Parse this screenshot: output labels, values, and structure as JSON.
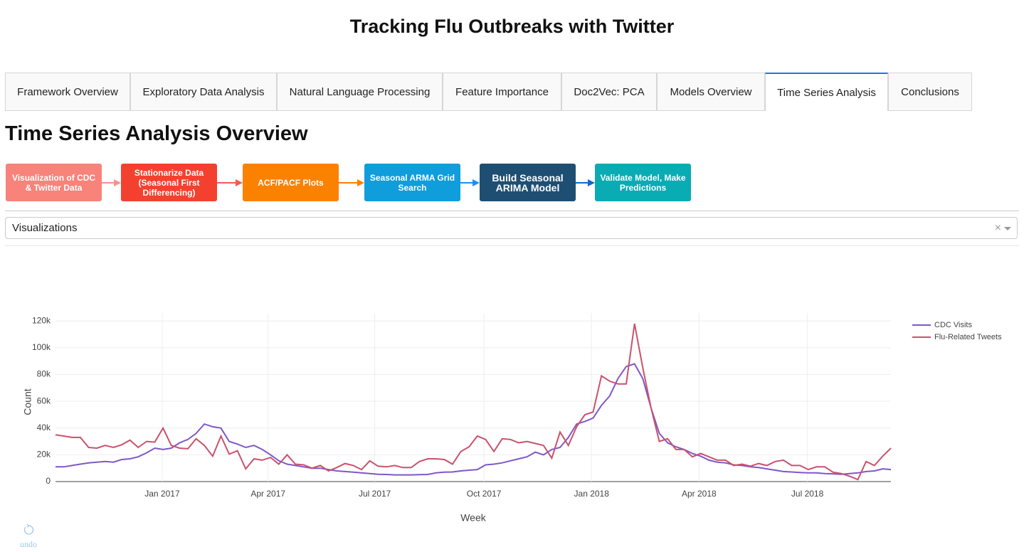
{
  "header": {
    "title": "Tracking Flu Outbreaks with Twitter"
  },
  "tabs": [
    "Framework Overview",
    "Exploratory Data Analysis",
    "Natural Language Processing",
    "Feature Importance",
    "Doc2Vec: PCA",
    "Models Overview",
    "Time Series Analysis",
    "Conclusions"
  ],
  "section_title": "Time Series Analysis Overview",
  "flow_steps": [
    "Visualization of CDC & Twitter Data",
    "Stationarize Data (Seasonal First Differencing)",
    "ACF/PACF Plots",
    "Seasonal ARMA Grid Search",
    "Build Seasonal ARIMA Model",
    "Validate Model, Make Predictions"
  ],
  "dropdown": {
    "value": "Visualizations"
  },
  "undo_label": "undo",
  "chart_data": {
    "type": "line",
    "x_label": "Week",
    "y_label": "Count",
    "x": [
      0,
      1,
      2,
      3,
      4,
      5,
      6,
      7,
      8,
      9,
      10,
      11,
      12,
      13,
      14,
      15,
      16,
      17,
      18,
      19,
      20,
      21,
      22,
      23,
      24,
      25,
      26,
      27,
      28,
      29,
      30,
      31,
      32,
      33,
      34,
      35,
      36,
      37,
      38,
      39,
      40,
      41,
      42,
      43,
      44,
      45,
      46,
      47,
      48,
      49,
      50,
      51,
      52,
      53,
      54,
      55,
      56,
      57,
      58,
      59,
      60,
      61,
      62,
      63,
      64,
      65,
      66,
      67,
      68,
      69,
      70,
      71,
      72,
      73,
      74,
      75,
      76,
      77,
      78,
      79,
      80,
      81,
      82,
      83,
      84,
      85,
      86,
      87,
      88,
      89,
      90,
      91,
      92,
      93,
      94,
      95,
      96,
      97,
      98,
      99,
      100,
      101
    ],
    "xlim": [
      0,
      101
    ],
    "xticks": [
      {
        "value": 12.9,
        "label": "Jan 2017"
      },
      {
        "value": 25.7,
        "label": "Apr 2017"
      },
      {
        "value": 38.6,
        "label": "Jul 2017"
      },
      {
        "value": 51.8,
        "label": "Oct 2017"
      },
      {
        "value": 64.8,
        "label": "Jan 2018"
      },
      {
        "value": 77.8,
        "label": "Apr 2018"
      },
      {
        "value": 90.9,
        "label": "Jul 2018"
      }
    ],
    "ylim": [
      0,
      126000
    ],
    "yticks": [
      0,
      {
        "value": 20000,
        "label": "20k"
      },
      {
        "value": 40000,
        "label": "40k"
      },
      {
        "value": 60000,
        "label": "60k"
      },
      {
        "value": 80000,
        "label": "80k"
      },
      {
        "value": 100000,
        "label": "100k"
      },
      {
        "value": 120000,
        "label": "120k"
      }
    ],
    "grid": true,
    "legend": "right",
    "series": [
      {
        "name": "CDC Visits",
        "color": "#7f57c9",
        "values": [
          11000,
          11000,
          12000,
          13000,
          14000,
          14500,
          15000,
          14500,
          16500,
          17000,
          18500,
          21500,
          25000,
          24000,
          25000,
          29000,
          31500,
          36000,
          43000,
          41000,
          40000,
          30000,
          28000,
          25500,
          27000,
          24000,
          20000,
          15500,
          13000,
          12000,
          11000,
          10000,
          10000,
          9000,
          8000,
          7500,
          7000,
          6500,
          6000,
          5500,
          5300,
          5000,
          5000,
          5000,
          5200,
          5300,
          6500,
          7000,
          7200,
          8000,
          8500,
          9000,
          12500,
          13000,
          14000,
          15500,
          17000,
          18500,
          22000,
          20000,
          24000,
          25500,
          33000,
          43000,
          45000,
          47500,
          57000,
          64000,
          77000,
          86000,
          88000,
          77000,
          55000,
          36000,
          29000,
          26000,
          24000,
          21000,
          19000,
          16000,
          14500,
          14000,
          12500,
          12000,
          11000,
          10500,
          9500,
          8500,
          7500,
          7200,
          6800,
          6500,
          6500,
          6000,
          5800,
          5500,
          6000,
          6500,
          7500,
          8000,
          9500,
          9000
        ]
      },
      {
        "name": "Flu-Related Tweets",
        "color": "#c9526b",
        "values": [
          35000,
          34000,
          33000,
          33000,
          25500,
          25000,
          27000,
          25500,
          27500,
          31000,
          25500,
          30000,
          29500,
          40000,
          27000,
          25000,
          24500,
          32000,
          27000,
          19000,
          34000,
          20500,
          23000,
          9500,
          17000,
          16000,
          18000,
          13000,
          20000,
          13000,
          12500,
          10000,
          12000,
          8000,
          10500,
          13500,
          12000,
          9000,
          15500,
          11500,
          11000,
          12000,
          10500,
          10500,
          15000,
          17000,
          17000,
          16500,
          13000,
          22500,
          26000,
          34000,
          31500,
          22500,
          32000,
          31500,
          29000,
          30000,
          28500,
          27000,
          17500,
          37000,
          27000,
          41000,
          50000,
          52000,
          79000,
          75000,
          73000,
          73000,
          118000,
          85000,
          55000,
          30000,
          32000,
          24000,
          24000,
          18500,
          21000,
          18500,
          16000,
          16000,
          12000,
          13000,
          11500,
          13500,
          12000,
          15000,
          16000,
          12000,
          12000,
          9000,
          11000,
          11000,
          7000,
          6000,
          4000,
          1500,
          15000,
          12000,
          19000,
          25000
        ]
      }
    ]
  }
}
